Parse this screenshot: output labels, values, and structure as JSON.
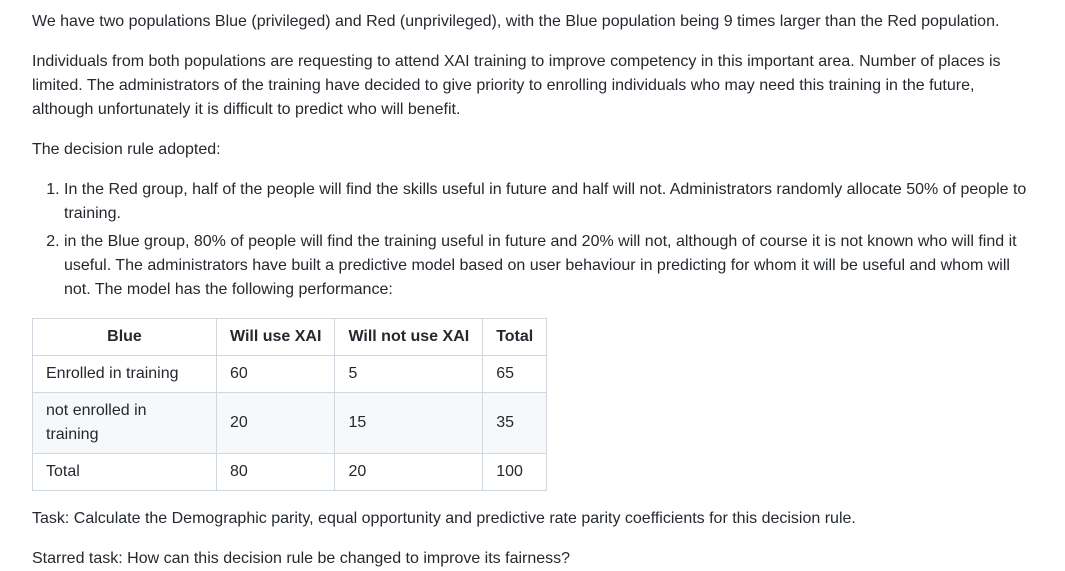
{
  "paragraphs": {
    "intro": "We have two populations Blue (privileged) and Red (unprivileged), with the Blue population being 9 times larger than the Red population.",
    "context": "Individuals from both populations are requesting to attend XAI training to improve competency in this important area. Number of places is limited. The administrators of the training have decided to give priority to enrolling individuals who may need this training in the future, although unfortunately it is difficult to predict who will benefit.",
    "rule_heading": "The decision rule adopted:"
  },
  "rules": [
    "In the Red group, half of the people will find the skills useful in future and half will not. Administrators randomly allocate 50% of people to training.",
    "in the Blue group, 80% of people will find the training useful in future and 20% will not, although of course it is not known who will find it useful. The administrators have built a predictive model based on user behaviour in predicting for whom it will be useful and whom will not. The model has the following performance:"
  ],
  "table": {
    "headers": [
      "Blue",
      "Will use XAI",
      "Will not use XAI",
      "Total"
    ],
    "rows": [
      [
        "Enrolled in training",
        "60",
        "5",
        "65"
      ],
      [
        "not enrolled in training",
        "20",
        "15",
        "35"
      ],
      [
        "Total",
        "80",
        "20",
        "100"
      ]
    ]
  },
  "tasks": {
    "task": "Task: Calculate the Demographic parity, equal opportunity and predictive rate parity coefficients for this decision rule.",
    "starred": "Starred task: How can this decision rule be changed to improve its fairness?"
  }
}
